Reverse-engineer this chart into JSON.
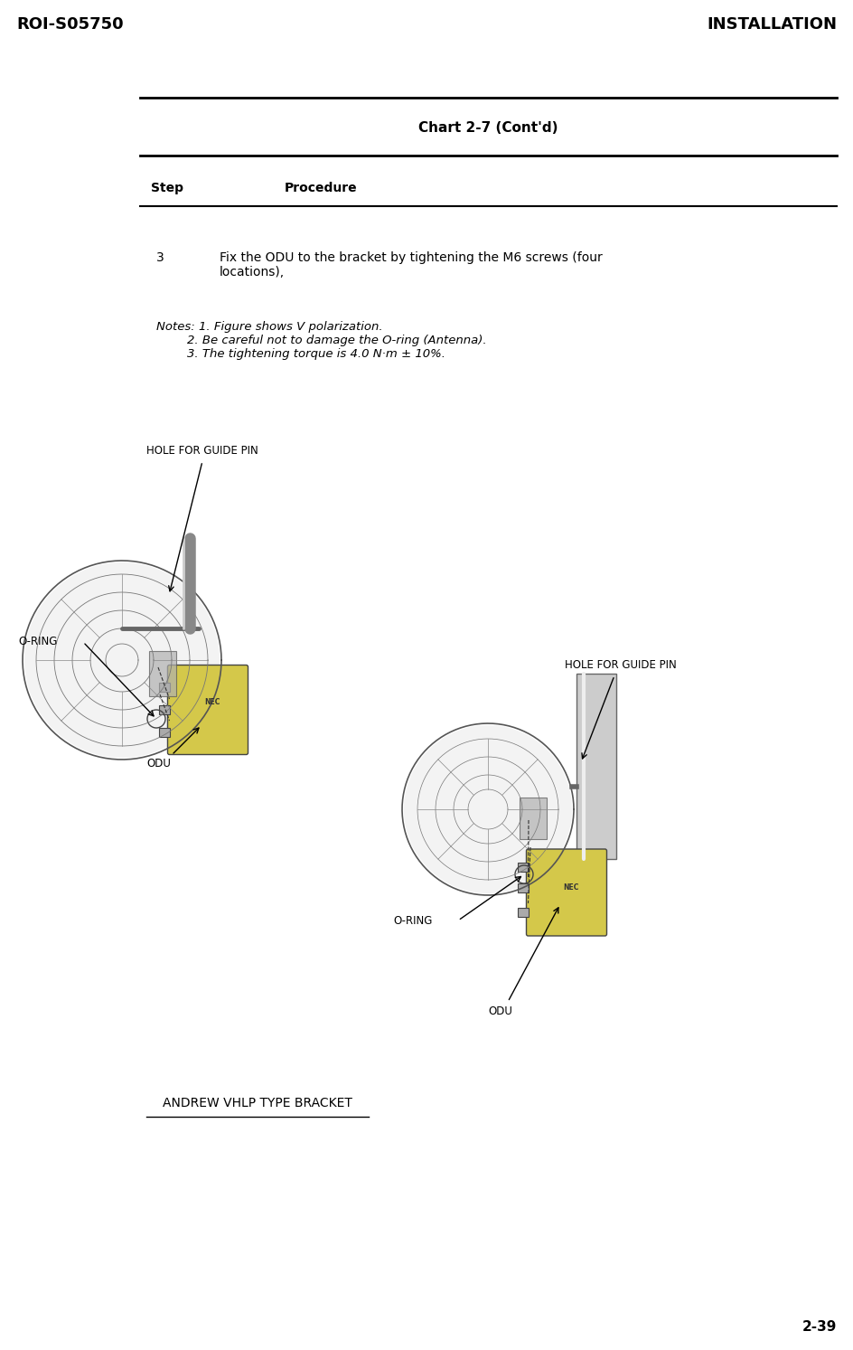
{
  "bg_color": "#ffffff",
  "header_left": "ROI-S05750",
  "header_right": "INSTALLATION",
  "footer_right": "2-39",
  "chart_title": "Chart 2-7 (Cont'd)",
  "step_label": "Step",
  "procedure_label": "Procedure",
  "step_number": "3",
  "step_text": "Fix the ODU to the bracket by tightening the M6 screws (four\nlocations),",
  "notes_text": "Notes: 1. Figure shows V polarization.\n        2. Be careful not to damage the O-ring (Antenna).\n        3. The tightening torque is 4.0 N·m ± 10%.",
  "label_hole_left": "HOLE FOR GUIDE PIN",
  "label_oring_left": "O-RING",
  "label_odu_left": "ODU",
  "label_hole_right": "HOLE FOR GUIDE PIN",
  "label_oring_right": "O-RING",
  "label_odu_right": "ODU",
  "caption": "ANDREW VHLP TYPE BRACKET",
  "fig_width": 9.44,
  "fig_height": 14.93
}
